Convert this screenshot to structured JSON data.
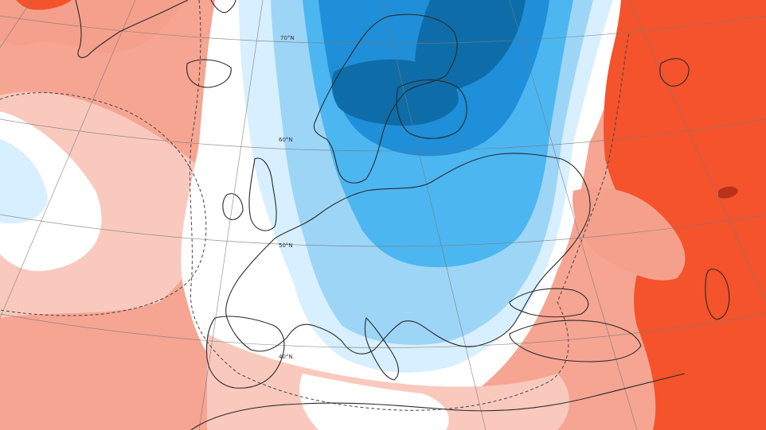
{
  "map": {
    "projection": "polar-stereographic",
    "region": "Europe / North Atlantic",
    "field": "temperature anomaly",
    "latitude_labels": [
      "70°N",
      "60°N",
      "50°N",
      "40°N"
    ]
  },
  "palette": {
    "warm_strong": "#f4532c",
    "warm_mid": "#f5a08c",
    "warm_light": "#f9c9bd",
    "neutral": "#ffffff",
    "cold_light": "#d8efff",
    "cold_mid": "#9dd5f7",
    "cold": "#4cb6f0",
    "cold_deep": "#1e8fd8",
    "cold_extreme": "#0e6da8",
    "coastline": "#2a2a2a",
    "graticule": "#7a7a7a"
  }
}
